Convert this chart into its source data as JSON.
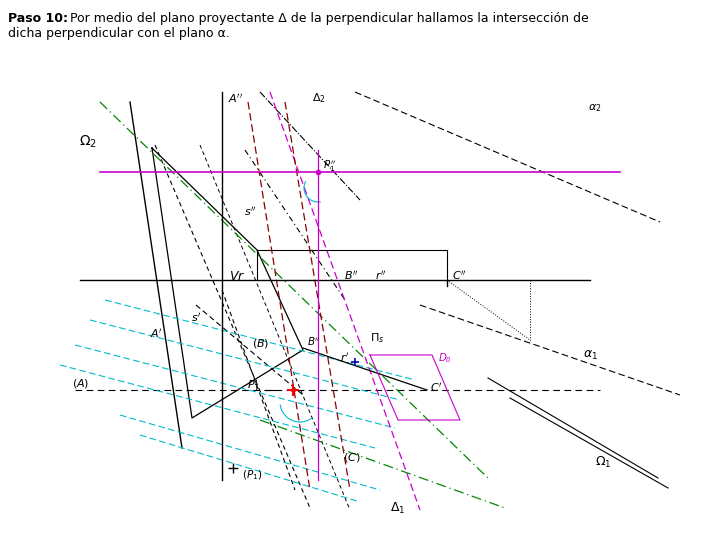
{
  "bg_color": "#ffffff",
  "fig_width": 7.2,
  "fig_height": 5.4,
  "dpi": 100,
  "black": "#000000",
  "green": "#008800",
  "cyan": "#00BBCC",
  "magenta": "#CC00CC",
  "dark_red": "#880000",
  "blue": "#0000AA",
  "title1_bold": "Paso 10:",
  "title1_rest": "  Por medio del plano proyectante Δ de la perpendicular hallamos la intersección de",
  "title2": "dicha perpendicular con el plano α."
}
